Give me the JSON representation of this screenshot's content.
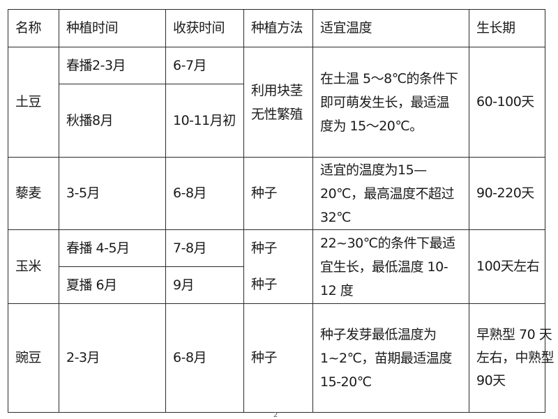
{
  "table": {
    "headers": [
      "名称",
      "种植时间",
      "收获时间",
      "种植方法",
      "适宜温度",
      "生长期"
    ],
    "potato": {
      "name": "土豆",
      "spring_plant": "春播2-3月",
      "spring_harvest": "6-7月",
      "autumn_plant": "秋播8月",
      "autumn_harvest": "10-11月初",
      "method": "利用块茎无性繁殖",
      "temperature": "在土温 5～8℃的条件下即可萌发生长，最适温度为 15～20℃。",
      "growth": "60-100天"
    },
    "quinoa": {
      "name": "藜麦",
      "plant": "3-5月",
      "harvest": "6-8月",
      "method": "种子",
      "temperature": "适宜的温度为15—20℃，最高温度不超过32℃",
      "growth": "90-220天"
    },
    "corn": {
      "name": "玉米",
      "spring_plant": "春播 4-5月",
      "spring_harvest": "7-8月",
      "spring_method": "种子",
      "summer_plant": "夏播 6月",
      "summer_harvest": "9月",
      "summer_method": "种子",
      "temperature": "22~30℃的条件下最适宜生长，最低温度 10-12 度",
      "growth": "100天左右"
    },
    "pea": {
      "name": "豌豆",
      "plant": "2-3月",
      "harvest": "6-8月",
      "method": "种子",
      "temperature": "种子发芽最低温度为 1~2℃，苗期最适温度 15-20℃",
      "growth_lines": [
        "早熟型 70 天",
        "左右，中熟型",
        "90天"
      ]
    }
  },
  "page_mark": "2"
}
